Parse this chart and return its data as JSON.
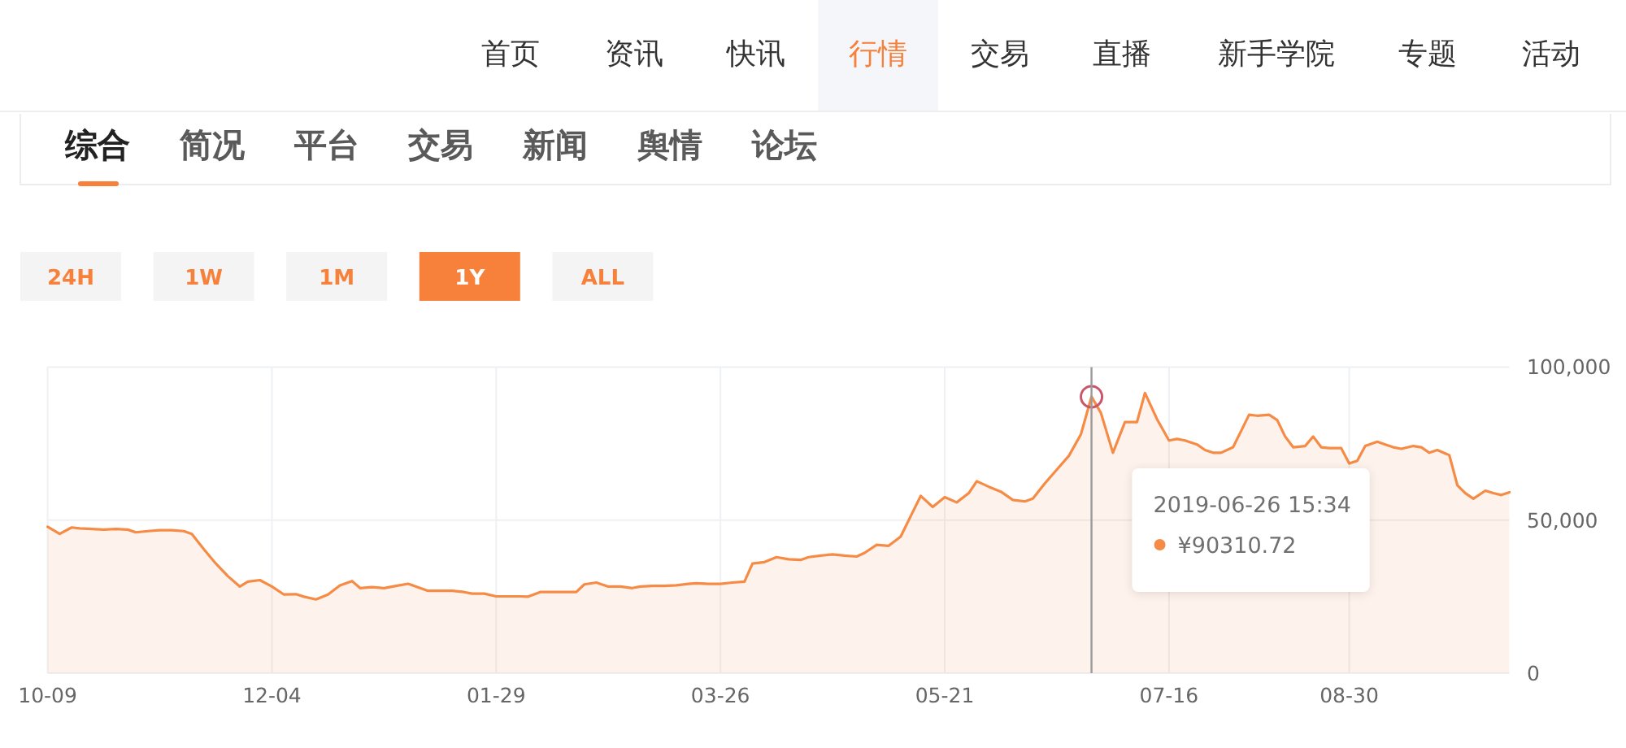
{
  "chart_data": {
    "type": "area",
    "x": [
      "2018-10-09",
      "2018-10-12",
      "2018-10-15",
      "2018-10-17",
      "2018-10-20",
      "2018-10-23",
      "2018-10-26",
      "2018-10-29",
      "2018-10-31",
      "2018-11-03",
      "2018-11-06",
      "2018-11-09",
      "2018-11-12",
      "2018-11-14",
      "2018-11-17",
      "2018-11-20",
      "2018-11-23",
      "2018-11-26",
      "2018-11-28",
      "2018-12-01",
      "2018-12-04",
      "2018-12-07",
      "2018-12-10",
      "2018-12-12",
      "2018-12-15",
      "2018-12-18",
      "2018-12-21",
      "2018-12-24",
      "2018-12-26",
      "2018-12-29",
      "2019-01-01",
      "2019-01-04",
      "2019-01-07",
      "2019-01-09",
      "2019-01-12",
      "2019-01-15",
      "2019-01-18",
      "2019-01-21",
      "2019-01-23",
      "2019-01-26",
      "2019-01-29",
      "2019-02-01",
      "2019-02-04",
      "2019-02-06",
      "2019-02-09",
      "2019-02-12",
      "2019-02-15",
      "2019-02-18",
      "2019-02-20",
      "2019-02-23",
      "2019-02-26",
      "2019-03-01",
      "2019-03-04",
      "2019-03-06",
      "2019-03-09",
      "2019-03-12",
      "2019-03-15",
      "2019-03-18",
      "2019-03-20",
      "2019-03-23",
      "2019-03-26",
      "2019-03-29",
      "2019-04-01",
      "2019-04-03",
      "2019-04-06",
      "2019-04-09",
      "2019-04-12",
      "2019-04-15",
      "2019-04-17",
      "2019-04-20",
      "2019-04-23",
      "2019-04-26",
      "2019-04-29",
      "2019-05-01",
      "2019-05-04",
      "2019-05-07",
      "2019-05-10",
      "2019-05-13",
      "2019-05-15",
      "2019-05-18",
      "2019-05-21",
      "2019-05-24",
      "2019-05-27",
      "2019-05-29",
      "2019-06-01",
      "2019-06-04",
      "2019-06-07",
      "2019-06-10",
      "2019-06-12",
      "2019-06-15",
      "2019-06-18",
      "2019-06-21",
      "2019-06-24",
      "2019-06-26T15:34",
      "2019-06-29",
      "2019-07-02",
      "2019-07-05",
      "2019-07-08",
      "2019-07-10",
      "2019-07-13",
      "2019-07-16",
      "2019-07-18",
      "2019-07-20",
      "2019-07-23",
      "2019-07-25",
      "2019-07-27",
      "2019-07-29",
      "2019-08-01",
      "2019-08-03",
      "2019-08-05",
      "2019-08-07",
      "2019-08-10",
      "2019-08-12",
      "2019-08-14",
      "2019-08-16",
      "2019-08-19",
      "2019-08-21",
      "2019-08-23",
      "2019-08-25",
      "2019-08-28",
      "2019-08-30",
      "2019-09-01",
      "2019-09-03",
      "2019-09-06",
      "2019-09-08",
      "2019-09-10",
      "2019-09-12",
      "2019-09-15",
      "2019-09-17",
      "2019-09-19",
      "2019-09-21",
      "2019-09-24",
      "2019-09-26",
      "2019-09-28",
      "2019-09-30",
      "2019-10-03",
      "2019-10-05",
      "2019-10-07",
      "2019-10-09"
    ],
    "series": [
      {
        "color": "#f58b45",
        "values": [
          47800,
          45500,
          47600,
          47300,
          47100,
          46900,
          47100,
          46900,
          46000,
          46400,
          46700,
          46700,
          46400,
          45500,
          40500,
          35800,
          31700,
          28300,
          29900,
          30400,
          28300,
          25700,
          25800,
          25000,
          24100,
          25700,
          28700,
          30100,
          27800,
          28100,
          27800,
          28500,
          29200,
          28300,
          26900,
          26900,
          26900,
          26500,
          26000,
          26000,
          25100,
          25100,
          25100,
          25000,
          26500,
          26500,
          26500,
          26500,
          29000,
          29600,
          28300,
          28300,
          27800,
          28300,
          28500,
          28500,
          28700,
          29200,
          29400,
          29200,
          29200,
          29600,
          29900,
          35800,
          36300,
          37900,
          37200,
          37000,
          37900,
          38400,
          38800,
          38400,
          38100,
          39300,
          41900,
          41600,
          44600,
          52600,
          57900,
          54300,
          57500,
          55800,
          58800,
          62700,
          60900,
          59300,
          56600,
          56100,
          57000,
          62000,
          66500,
          71000,
          78000,
          90310.72,
          85000,
          72000,
          82000,
          82000,
          91500,
          83000,
          76000,
          76500,
          76000,
          74700,
          72900,
          72000,
          72000,
          73800,
          79100,
          84400,
          84100,
          84400,
          82700,
          77300,
          73800,
          74200,
          77300,
          73800,
          73500,
          73500,
          68500,
          69400,
          74200,
          75600,
          74700,
          73800,
          73300,
          74200,
          73800,
          72000,
          72900,
          71200,
          61400,
          58800,
          57000,
          59600,
          58800,
          58200,
          59100
        ]
      },
      {
        "type": "scatter",
        "marker": "circle",
        "color": "#c9576b",
        "x": [
          "2019-06-26T15:34"
        ],
        "values": [
          90310.72
        ]
      }
    ],
    "xlim": [
      "2018-10-09",
      "2019-10-09"
    ],
    "xticks": [
      {
        "value": "2018-10-09",
        "label": "10-09"
      },
      {
        "value": "2018-12-04",
        "label": "12-04"
      },
      {
        "value": "2019-01-29",
        "label": "01-29"
      },
      {
        "value": "2019-03-26",
        "label": "03-26"
      },
      {
        "value": "2019-05-21",
        "label": "05-21"
      },
      {
        "value": "2019-07-16",
        "label": "07-16"
      },
      {
        "value": "2019-08-30",
        "label": "08-30"
      }
    ],
    "ylim": [
      0,
      100000
    ],
    "yticks": [
      0,
      {
        "value": 50000,
        "label": "50,000"
      },
      {
        "value": 100000,
        "label": "100,000"
      }
    ],
    "grid": true,
    "ref_lines": [
      {
        "axis": "x",
        "value": "2019-06-26T15:34",
        "color": "#9a9a9a"
      }
    ],
    "annotations": [
      "首页",
      "资讯",
      "快讯",
      "行情",
      "交易",
      "直播",
      "新手学院",
      "专题",
      "活动",
      "综合",
      "简况",
      "平台",
      "交易",
      "新闻",
      "舆情",
      "论坛",
      "24H",
      "1W",
      "1M",
      "1Y",
      "ALL",
      "2019-06-26 15:34\n¥90310.72"
    ]
  }
}
